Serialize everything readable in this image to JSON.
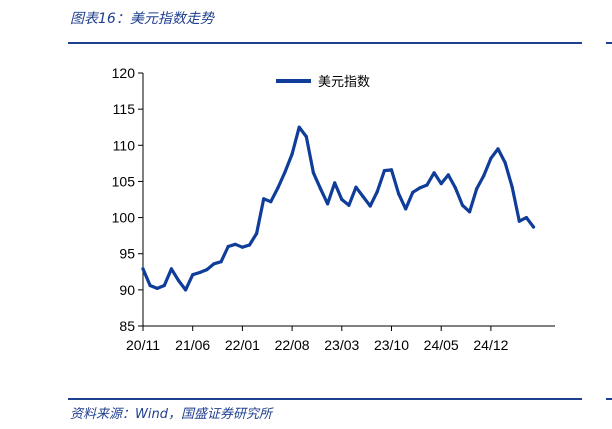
{
  "figure": {
    "title": "图表16：美元指数走势",
    "source": "资料来源：Wind，国盛证券研究所"
  },
  "colors": {
    "series": "#0f3d99",
    "rule": "#1f3f8f",
    "axis": "#000000"
  },
  "chart_data": {
    "type": "line",
    "title": "",
    "xlabel": "",
    "ylabel": "",
    "ylim": [
      85,
      120
    ],
    "yticks": [
      85,
      90,
      95,
      100,
      105,
      110,
      115,
      120
    ],
    "xticks": [
      "20/11",
      "21/06",
      "22/01",
      "22/08",
      "23/03",
      "23/10",
      "24/05",
      "24/12"
    ],
    "legend_position": "top-center",
    "grid": false,
    "series": [
      {
        "name": "美元指数",
        "x": [
          "2020-11",
          "2020-12",
          "2021-01",
          "2021-02",
          "2021-03",
          "2021-04",
          "2021-05",
          "2021-06",
          "2021-07",
          "2021-08",
          "2021-09",
          "2021-10",
          "2021-11",
          "2021-12",
          "2022-01",
          "2022-02",
          "2022-03",
          "2022-04",
          "2022-05",
          "2022-06",
          "2022-07",
          "2022-08",
          "2022-09",
          "2022-10",
          "2022-11",
          "2022-12",
          "2023-01",
          "2023-02",
          "2023-03",
          "2023-04",
          "2023-05",
          "2023-06",
          "2023-07",
          "2023-08",
          "2023-09",
          "2023-10",
          "2023-11",
          "2023-12",
          "2024-01",
          "2024-02",
          "2024-03",
          "2024-04",
          "2024-05",
          "2024-06",
          "2024-07",
          "2024-08",
          "2024-09",
          "2024-10",
          "2024-11",
          "2024-12",
          "2025-01",
          "2025-02",
          "2025-03",
          "2025-04",
          "2025-05",
          "2025-06"
        ],
        "values": [
          92.9,
          90.6,
          90.2,
          90.6,
          92.9,
          91.3,
          90.0,
          92.1,
          92.4,
          92.8,
          93.6,
          93.9,
          96.0,
          96.3,
          95.9,
          96.2,
          97.8,
          102.6,
          102.2,
          104.1,
          106.3,
          108.8,
          112.5,
          111.2,
          106.2,
          104.0,
          101.9,
          104.8,
          102.5,
          101.7,
          104.2,
          102.9,
          101.6,
          103.6,
          106.5,
          106.6,
          103.3,
          101.2,
          103.5,
          104.1,
          104.5,
          106.2,
          104.7,
          105.9,
          104.1,
          101.7,
          100.8,
          104.0,
          105.8,
          108.2,
          109.5,
          107.6,
          104.2,
          99.5,
          100.0,
          98.7
        ]
      }
    ]
  }
}
